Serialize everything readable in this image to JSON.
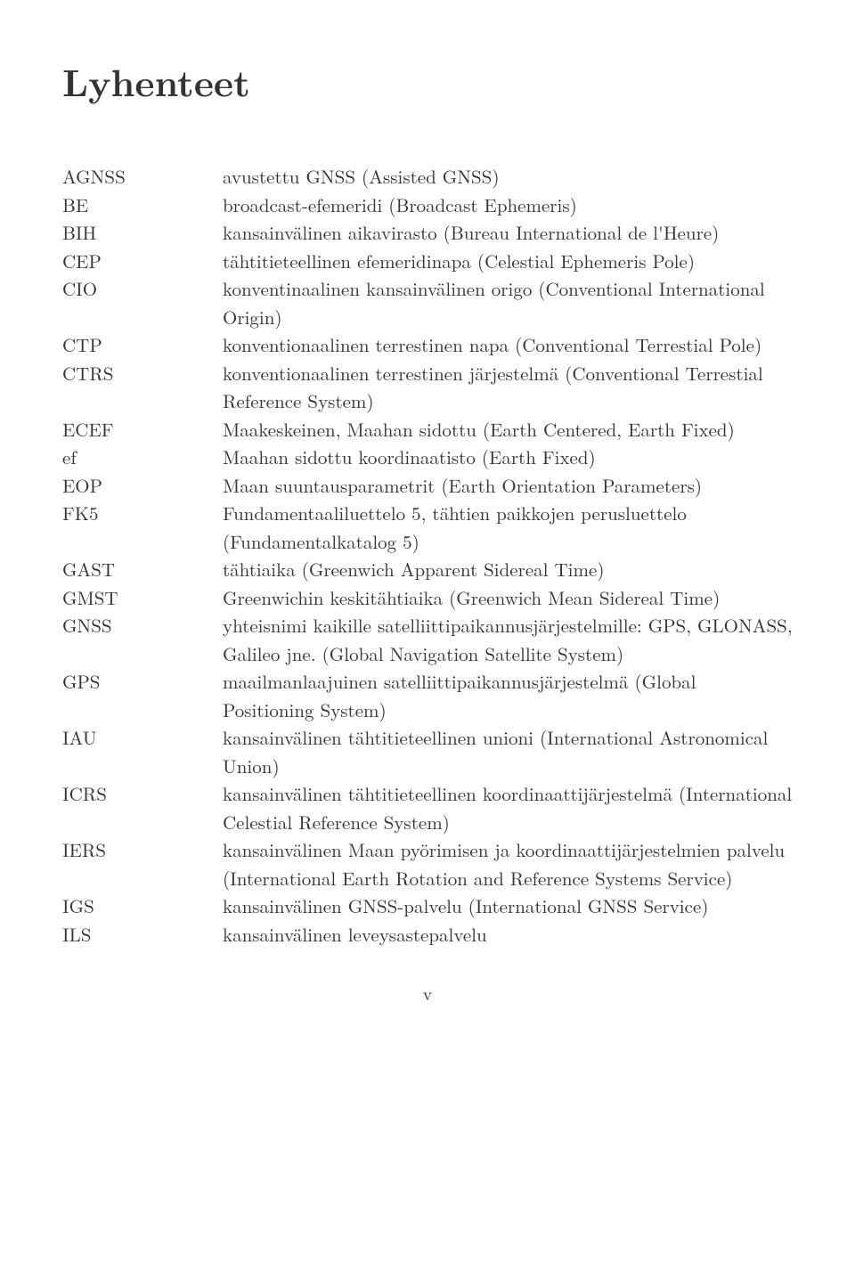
{
  "title": "Lyhenteet",
  "page_number": "v",
  "entries": [
    {
      "abbrev": "AGNSS",
      "def": "avustettu GNSS (Assisted GNSS)"
    },
    {
      "abbrev": "BE",
      "def": "broadcast-efemeridi (Broadcast Ephemeris)"
    },
    {
      "abbrev": "BIH",
      "def": "kansainvälinen aikavirasto (Bureau International de l'Heure)"
    },
    {
      "abbrev": "CEP",
      "def": "tähtitieteellinen efemeridinapa (Celestial Ephemeris Pole)"
    },
    {
      "abbrev": "CIO",
      "def": "konventinaalinen kansainvälinen origo (Conventional International Origin)"
    },
    {
      "abbrev": "CTP",
      "def": "konventionaalinen terrestinen napa (Conventional Terrestial Pole)"
    },
    {
      "abbrev": "CTRS",
      "def": "konventionaalinen terrestinen järjestelmä (Conventional Terrestial Reference System)"
    },
    {
      "abbrev": "ECEF",
      "def": "Maakeskeinen, Maahan sidottu (Earth Centered, Earth Fixed)"
    },
    {
      "abbrev": "ef",
      "def": "Maahan sidottu koordinaatisto (Earth Fixed)"
    },
    {
      "abbrev": "EOP",
      "def": "Maan suuntausparametrit (Earth Orientation Parameters)"
    },
    {
      "abbrev": "FK5",
      "def": "Fundamentaaliluettelo 5, tähtien paikkojen perusluettelo (Fundamentalkatalog 5)"
    },
    {
      "abbrev": "GAST",
      "def": "tähtiaika (Greenwich Apparent Sidereal Time)"
    },
    {
      "abbrev": "GMST",
      "def": "Greenwichin keskitähtiaika (Greenwich Mean Sidereal Time)"
    },
    {
      "abbrev": "GNSS",
      "def": "yhteisnimi kaikille satelliittipaikannusjärjestelmille: GPS, GLONASS, Galileo jne. (Global Navigation Satellite System)"
    },
    {
      "abbrev": "GPS",
      "def": "maailmanlaajuinen satelliittipaikannusjärjestelmä (Global Positioning System)"
    },
    {
      "abbrev": "IAU",
      "def": "kansainvälinen tähtitieteellinen unioni (International Astronomical Union)"
    },
    {
      "abbrev": "ICRS",
      "def": "kansainvälinen tähtitieteellinen koordinaattijärjestelmä (International Celestial Reference System)"
    },
    {
      "abbrev": "IERS",
      "def": "kansainvälinen Maan pyörimisen ja koordinaattijärjestelmien palvelu (International Earth Rotation and Reference Systems Service)"
    },
    {
      "abbrev": "IGS",
      "def": "kansainvälinen GNSS-palvelu (International GNSS Service)"
    },
    {
      "abbrev": "ILS",
      "def": "kansainvälinen leveysastepalvelu"
    }
  ]
}
